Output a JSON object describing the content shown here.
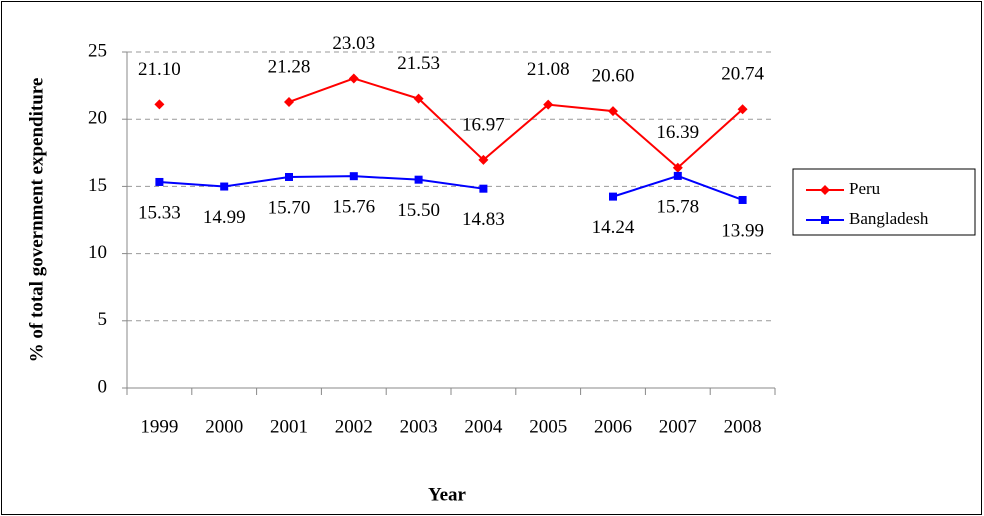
{
  "chart_data": {
    "type": "line",
    "x_label": "Year",
    "y_label": "% of total government expenditure",
    "categories": [
      "1999",
      "2000",
      "2001",
      "2002",
      "2003",
      "2004",
      "2005",
      "2006",
      "2007",
      "2008"
    ],
    "series": [
      {
        "name": "Peru",
        "color": "#ff0000",
        "marker": "diamond",
        "values": [
          21.1,
          null,
          21.28,
          23.03,
          21.53,
          16.97,
          21.08,
          20.6,
          16.39,
          20.74
        ],
        "value_labels": [
          "21.10",
          null,
          "21.28",
          "23.03",
          "21.53",
          "16.97",
          "21.08",
          "20.60",
          "16.39",
          "20.74"
        ]
      },
      {
        "name": "Bangladesh",
        "color": "#0000ff",
        "marker": "square",
        "values": [
          15.33,
          14.99,
          15.7,
          15.76,
          15.5,
          14.83,
          null,
          14.24,
          15.78,
          13.99
        ],
        "value_labels": [
          "15.33",
          "14.99",
          "15.70",
          "15.76",
          "15.50",
          "14.83",
          null,
          "14.24",
          "15.78",
          "13.99"
        ]
      }
    ],
    "ylim": [
      0,
      25
    ],
    "yticks": [
      0,
      5,
      10,
      15,
      20,
      25
    ],
    "grid": true,
    "legend": "right"
  }
}
